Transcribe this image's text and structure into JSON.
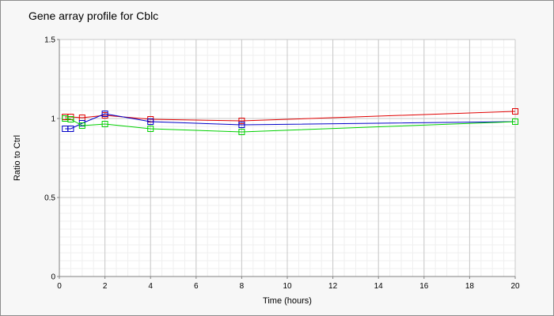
{
  "chart_data": {
    "type": "line",
    "title": "Gene array profile for Cblc",
    "xlabel": "Time (hours)",
    "ylabel": "Ratio to Ctrl",
    "xlim": [
      0,
      20
    ],
    "ylim": [
      0,
      1.5
    ],
    "x_ticks": [
      0,
      2,
      4,
      6,
      8,
      10,
      12,
      14,
      16,
      18,
      20
    ],
    "y_ticks": [
      0,
      0.5,
      1,
      1.5
    ],
    "x_tick_labels": [
      "0",
      "2",
      "4",
      "6",
      "8",
      "10",
      "12",
      "14",
      "16",
      "18",
      "20"
    ],
    "y_tick_labels": [
      "0",
      "0.5",
      "1",
      "1.5"
    ],
    "grid": true,
    "legend": false,
    "series": [
      {
        "color": "#e00000",
        "x": [
          0.25,
          0.5,
          1,
          2,
          4,
          8,
          20
        ],
        "y": [
          1.01,
          1.01,
          1.005,
          1.02,
          0.995,
          0.985,
          1.045
        ]
      },
      {
        "color": "#0000c8",
        "x": [
          0.25,
          0.5,
          1,
          2,
          4,
          8,
          20
        ],
        "y": [
          0.935,
          0.935,
          0.97,
          1.03,
          0.98,
          0.96,
          0.98
        ]
      },
      {
        "color": "#00d000",
        "x": [
          0.25,
          0.5,
          1,
          2,
          4,
          8,
          20
        ],
        "y": [
          1.0,
          0.995,
          0.955,
          0.965,
          0.935,
          0.915,
          0.98
        ]
      }
    ]
  }
}
